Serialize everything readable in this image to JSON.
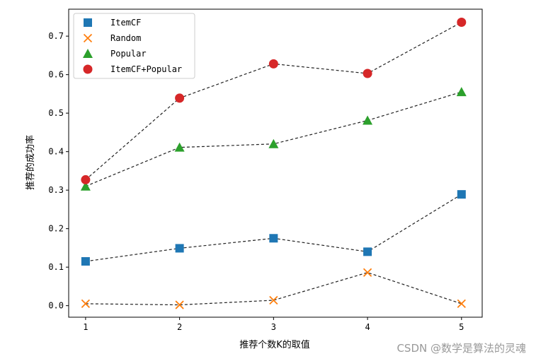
{
  "chart_data": {
    "type": "scatter",
    "xlabel": "推荐个数K的取值",
    "ylabel": "推荐的成功率",
    "x": [
      1,
      2,
      3,
      4,
      5
    ],
    "xlim": [
      0.82,
      5.22
    ],
    "ylim": [
      -0.03,
      0.77
    ],
    "xticks": [
      "1",
      "2",
      "3",
      "4",
      "5"
    ],
    "yticks": [
      "0.0",
      "0.1",
      "0.2",
      "0.3",
      "0.4",
      "0.5",
      "0.6",
      "0.7"
    ],
    "grid": false,
    "legend_position": "top-left",
    "connecting_line": "dashed",
    "series": [
      {
        "name": "ItemCF",
        "marker": "square",
        "color": "#1f77b4",
        "values": [
          0.115,
          0.149,
          0.175,
          0.14,
          0.289
        ]
      },
      {
        "name": "Random",
        "marker": "x",
        "color": "#ff7f0e",
        "values": [
          0.005,
          0.002,
          0.014,
          0.086,
          0.005
        ]
      },
      {
        "name": "Popular",
        "marker": "triangle",
        "color": "#2ca02c",
        "values": [
          0.31,
          0.411,
          0.42,
          0.481,
          0.555
        ]
      },
      {
        "name": "ItemCF+Popular",
        "marker": "circle",
        "color": "#d62728",
        "values": [
          0.327,
          0.539,
          0.628,
          0.603,
          0.736
        ]
      }
    ]
  },
  "watermark": "CSDN @数学是算法的灵魂"
}
